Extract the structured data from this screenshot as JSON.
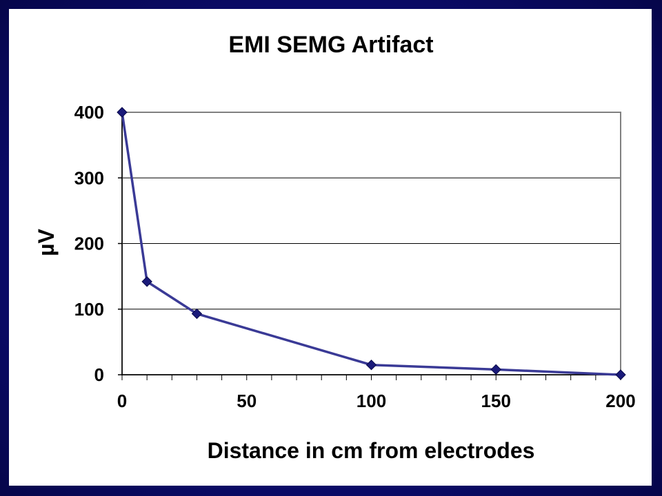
{
  "chart_data": {
    "type": "line",
    "title": "EMI SEMG Artifact",
    "xlabel": "Distance in cm from electrodes",
    "ylabel": "µV",
    "xlim": [
      0,
      200
    ],
    "ylim": [
      0,
      400
    ],
    "xticks": [
      "0",
      "50",
      "100",
      "150",
      "200"
    ],
    "yticks": [
      "0",
      "100",
      "200",
      "300",
      "400"
    ],
    "grid": "horizontal",
    "legend": "none",
    "series": [
      {
        "color": "#3a3a96",
        "marker_color": "#1a1a7a",
        "x": [
          0,
          10,
          30,
          100,
          150,
          200
        ],
        "y": [
          400,
          142,
          93,
          15,
          8,
          0
        ]
      }
    ]
  }
}
